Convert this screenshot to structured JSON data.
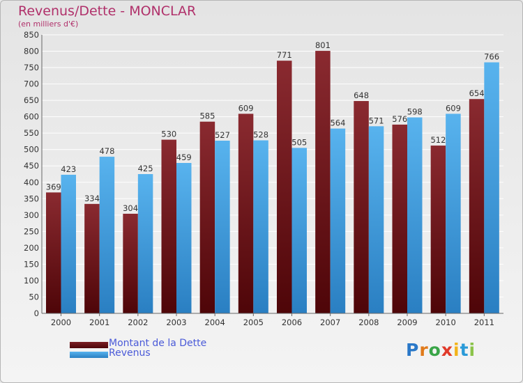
{
  "title": "Revenus/Dette - MONCLAR",
  "subtitle": "(en milliers d'€)",
  "legend": {
    "debt_label": "Montant de la Dette",
    "revenue_label": "Revenus"
  },
  "logo_text": "Proxiti",
  "colors": {
    "debt": "#7a1e24",
    "debt_dark": "#5a0a0f",
    "revenue": "#4aa8e6",
    "revenue_dark": "#2e7fc0",
    "title": "#b0306a"
  },
  "chart_data": {
    "type": "bar",
    "categories": [
      "2000",
      "2001",
      "2002",
      "2003",
      "2004",
      "2005",
      "2006",
      "2007",
      "2008",
      "2009",
      "2010",
      "2011"
    ],
    "series": [
      {
        "name": "Montant de la Dette",
        "values": [
          369,
          334,
          304,
          530,
          585,
          609,
          771,
          801,
          648,
          576,
          512,
          654
        ]
      },
      {
        "name": "Revenus",
        "values": [
          423,
          478,
          425,
          459,
          527,
          528,
          505,
          564,
          571,
          598,
          609,
          766
        ]
      }
    ],
    "title": "Revenus/Dette - MONCLAR",
    "ylim": [
      0,
      850
    ],
    "yticks": [
      0,
      50,
      100,
      150,
      200,
      250,
      300,
      350,
      400,
      450,
      500,
      550,
      600,
      650,
      700,
      750,
      800,
      850
    ],
    "grid": true,
    "legend_position": "bottom-left"
  }
}
